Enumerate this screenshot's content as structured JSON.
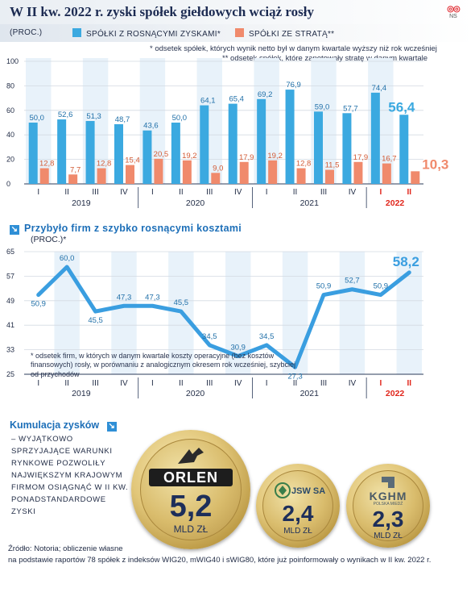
{
  "header": {
    "title": "W II kw. 2022 r. zyski spółek giełdowych wciąż rosły",
    "logo_text": "NS"
  },
  "chart1": {
    "unit": "(PROC.)",
    "legend_profit": "SPÓŁKI Z ROSNĄCYMI ZYSKAMI*",
    "legend_loss": "SPÓŁKI ZE STRATĄ**",
    "note1": "* odsetek spółek, których wynik netto był w danym kwartale wyższy niż rok wcześniej",
    "note2": "** odsetek spółek, które zanotowały stratę w danym kwartale"
  },
  "chart2": {
    "title": "Przybyło firm z szybko rosnącymi kosztami",
    "unit": "(PROC.)*",
    "note": "* odsetek firm, w których w danym kwartale koszty operacyjne (bez kosztów finansowych) rosły, w porównaniu z analogicznym okresem rok wcześniej, szybciej od przychodów"
  },
  "cumulation": {
    "title": "Kumulacja zysków",
    "text": "– WYJĄTKOWO SPRZYJAJĄCE WARUNKI RYNKOWE POZWOLIŁY NAJWIĘKSZYM KRAJOWYM FIRMOM OSIĄGNĄĆ W II KW. PONADSTANDARDOWE ZYSKI",
    "coins": [
      {
        "company": "ORLEN",
        "value": "5,2",
        "unit": "MLD ZŁ"
      },
      {
        "company": "JSW SA",
        "value": "2,4",
        "unit": "MLD ZŁ"
      },
      {
        "company": "KGHM",
        "subtitle": "POLSKA MIEDŹ",
        "value": "2,3",
        "unit": "MLD ZŁ"
      }
    ]
  },
  "source": {
    "line1": "Źródło: Notoria; obliczenie własne",
    "line2": "na podstawie raportów 78 spółek z indeksów WIG20, mWIG40 i sWIG80, które już poinformowały o wynikach w II kw. 2022 r."
  },
  "colors": {
    "profit": "#3ba9e0",
    "loss": "#f08a6c",
    "line": "#3a9ee0",
    "accent": "#1d6fb8",
    "highlight": "#e1261c"
  },
  "chart_data": [
    {
      "type": "bar",
      "ylim": [
        0,
        100
      ],
      "yticks": [
        0,
        20,
        40,
        60,
        80,
        100
      ],
      "quarters": [
        "I",
        "II",
        "III",
        "IV",
        "I",
        "II",
        "III",
        "IV",
        "I",
        "II",
        "III",
        "IV",
        "I",
        "II"
      ],
      "years": [
        "2019",
        "2020",
        "2021",
        "2022"
      ],
      "series": [
        {
          "name": "SPÓŁKI Z ROSNĄCYMI ZYSKAMI*",
          "values": [
            50.0,
            52.6,
            51.3,
            48.7,
            43.6,
            50.0,
            64.1,
            65.4,
            69.2,
            76.9,
            59.0,
            57.7,
            74.4,
            56.4
          ],
          "labels": [
            "50,0",
            "52,6",
            "51,3",
            "48,7",
            "43,6",
            "50,0",
            "64,1",
            "65,4",
            "69,2",
            "76,9",
            "59,0",
            "57,7",
            "74,4",
            "56,4"
          ]
        },
        {
          "name": "SPÓŁKI ZE STRATĄ**",
          "values": [
            12.8,
            7.7,
            12.8,
            15.4,
            20.5,
            19.2,
            9.0,
            17.9,
            19.2,
            12.8,
            11.5,
            17.9,
            16.7,
            10.3
          ],
          "labels": [
            "12,8",
            "7,7",
            "12,8",
            "15,4",
            "20,5",
            "19,2",
            "9,0",
            "17,9",
            "19,2",
            "12,8",
            "11,5",
            "17,9",
            "16,7",
            "10,3"
          ]
        }
      ]
    },
    {
      "type": "line",
      "ylim": [
        25,
        65
      ],
      "yticks": [
        25,
        33,
        41,
        49,
        57,
        65
      ],
      "quarters": [
        "I",
        "II",
        "III",
        "IV",
        "I",
        "II",
        "III",
        "IV",
        "I",
        "II",
        "III",
        "IV",
        "I",
        "II"
      ],
      "years": [
        "2019",
        "2020",
        "2021",
        "2022"
      ],
      "series": [
        {
          "values": [
            50.9,
            60.0,
            45.5,
            47.3,
            47.3,
            45.5,
            34.5,
            30.9,
            34.5,
            27.3,
            50.9,
            52.7,
            50.9,
            58.2
          ],
          "labels": [
            "50,9",
            "60,0",
            "45,5",
            "47,3",
            "47,3",
            "45,5",
            "34,5",
            "30,9",
            "34,5",
            "27,3",
            "50,9",
            "52,7",
            "50,9",
            "58,2"
          ]
        }
      ]
    }
  ]
}
